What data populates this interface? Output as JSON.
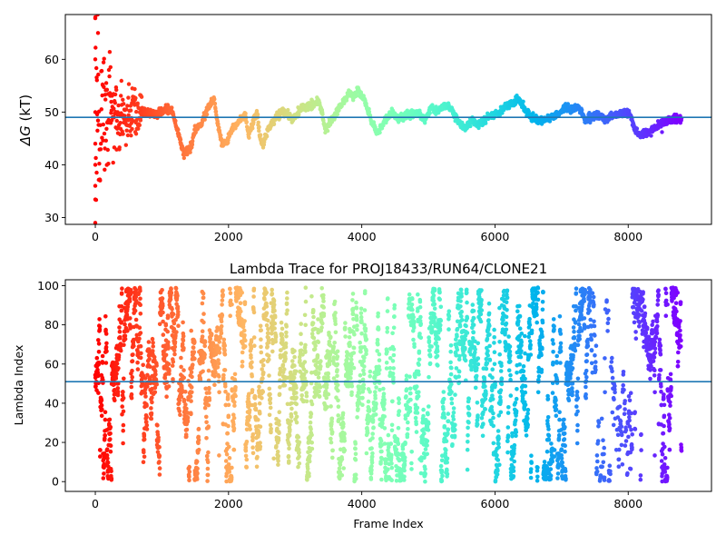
{
  "chart_data": [
    {
      "type": "scatter",
      "title": "",
      "xlabel": "",
      "ylabel_symbol": "ΔG",
      "ylabel_unit": "(kT)",
      "xlim": [
        -450,
        9250
      ],
      "ylim": [
        28.7,
        68.5
      ],
      "xticks": [
        0,
        2000,
        4000,
        6000,
        8000
      ],
      "xtick_labels": [
        "0",
        "2000",
        "4000",
        "6000",
        "8000"
      ],
      "yticks": [
        30,
        40,
        50,
        60
      ],
      "ytick_labels": [
        "30",
        "40",
        "50",
        "60"
      ],
      "hline": 49.0,
      "hline_color": "#1f77b4",
      "colormap": "rainbow, red at frame 0 to violet at the last frame",
      "grid": false,
      "trace_keypoints": [
        [
          0,
          50
        ],
        [
          100,
          48
        ],
        [
          200,
          51
        ],
        [
          300,
          49
        ],
        [
          500,
          50
        ],
        [
          700,
          50
        ],
        [
          900,
          49.5
        ],
        [
          1050,
          50.5
        ],
        [
          1150,
          50.3
        ],
        [
          1250,
          46
        ],
        [
          1330,
          42
        ],
        [
          1420,
          43
        ],
        [
          1500,
          46.5
        ],
        [
          1600,
          48
        ],
        [
          1700,
          51
        ],
        [
          1780,
          52.5
        ],
        [
          1840,
          47.5
        ],
        [
          1900,
          44
        ],
        [
          1980,
          44.3
        ],
        [
          2050,
          47
        ],
        [
          2150,
          48
        ],
        [
          2250,
          49.5
        ],
        [
          2300,
          45.5
        ],
        [
          2380,
          48.5
        ],
        [
          2430,
          49.8
        ],
        [
          2470,
          45
        ],
        [
          2520,
          43.8
        ],
        [
          2600,
          47
        ],
        [
          2700,
          49
        ],
        [
          2800,
          50
        ],
        [
          2900,
          49.5
        ],
        [
          2950,
          48.5
        ],
        [
          3050,
          50
        ],
        [
          3150,
          51
        ],
        [
          3250,
          51.5
        ],
        [
          3350,
          52
        ],
        [
          3400,
          50
        ],
        [
          3450,
          46.5
        ],
        [
          3520,
          48
        ],
        [
          3620,
          50
        ],
        [
          3720,
          52
        ],
        [
          3820,
          53.5
        ],
        [
          3900,
          53
        ],
        [
          3950,
          54.2
        ],
        [
          4050,
          52
        ],
        [
          4150,
          48
        ],
        [
          4250,
          46
        ],
        [
          4350,
          48.5
        ],
        [
          4450,
          50
        ],
        [
          4550,
          48.5
        ],
        [
          4650,
          49.5
        ],
        [
          4750,
          49.5
        ],
        [
          4850,
          50
        ],
        [
          4950,
          48.5
        ],
        [
          5050,
          51
        ],
        [
          5150,
          50
        ],
        [
          5250,
          51.5
        ],
        [
          5350,
          50.5
        ],
        [
          5450,
          48
        ],
        [
          5550,
          47
        ],
        [
          5650,
          48.5
        ],
        [
          5750,
          47.5
        ],
        [
          5850,
          48.5
        ],
        [
          5950,
          49.5
        ],
        [
          6050,
          50
        ],
        [
          6150,
          51
        ],
        [
          6250,
          51.5
        ],
        [
          6350,
          52.5
        ],
        [
          6450,
          50.5
        ],
        [
          6550,
          49
        ],
        [
          6650,
          48.5
        ],
        [
          6750,
          48.5
        ],
        [
          6850,
          49
        ],
        [
          6950,
          49.5
        ],
        [
          7050,
          51
        ],
        [
          7150,
          50.5
        ],
        [
          7250,
          51
        ],
        [
          7350,
          48.5
        ],
        [
          7450,
          49
        ],
        [
          7550,
          49.5
        ],
        [
          7650,
          48.5
        ],
        [
          7750,
          49.5
        ],
        [
          7850,
          49.5
        ],
        [
          7950,
          50
        ],
        [
          8030,
          49.5
        ],
        [
          8100,
          46.5
        ],
        [
          8200,
          45.5
        ],
        [
          8300,
          46
        ],
        [
          8450,
          47.5
        ],
        [
          8600,
          48.5
        ],
        [
          8800,
          48.8
        ]
      ],
      "early_spread_frames": [
        0,
        700
      ],
      "early_spread_range": [
        29,
        68.5
      ]
    },
    {
      "type": "scatter",
      "title": "Lambda Trace for PROJ18433/RUN64/CLONE21",
      "xlabel": "Frame Index",
      "ylabel": "Lambda Index",
      "xlim": [
        -450,
        9250
      ],
      "ylim": [
        -5,
        103
      ],
      "xticks": [
        0,
        2000,
        4000,
        6000,
        8000
      ],
      "xtick_labels": [
        "0",
        "2000",
        "4000",
        "6000",
        "8000"
      ],
      "yticks": [
        0,
        20,
        40,
        60,
        80,
        100
      ],
      "ytick_labels": [
        "0",
        "20",
        "40",
        "60",
        "80",
        "100"
      ],
      "hline": 51.0,
      "hline_color": "#1f77b4",
      "colormap": "rainbow, red at frame 0 to violet at the last frame",
      "grid": false,
      "lambda_range": [
        0,
        99
      ],
      "frame_range": [
        0,
        8800
      ],
      "low_density_frames": [
        7450,
        8050
      ]
    }
  ]
}
